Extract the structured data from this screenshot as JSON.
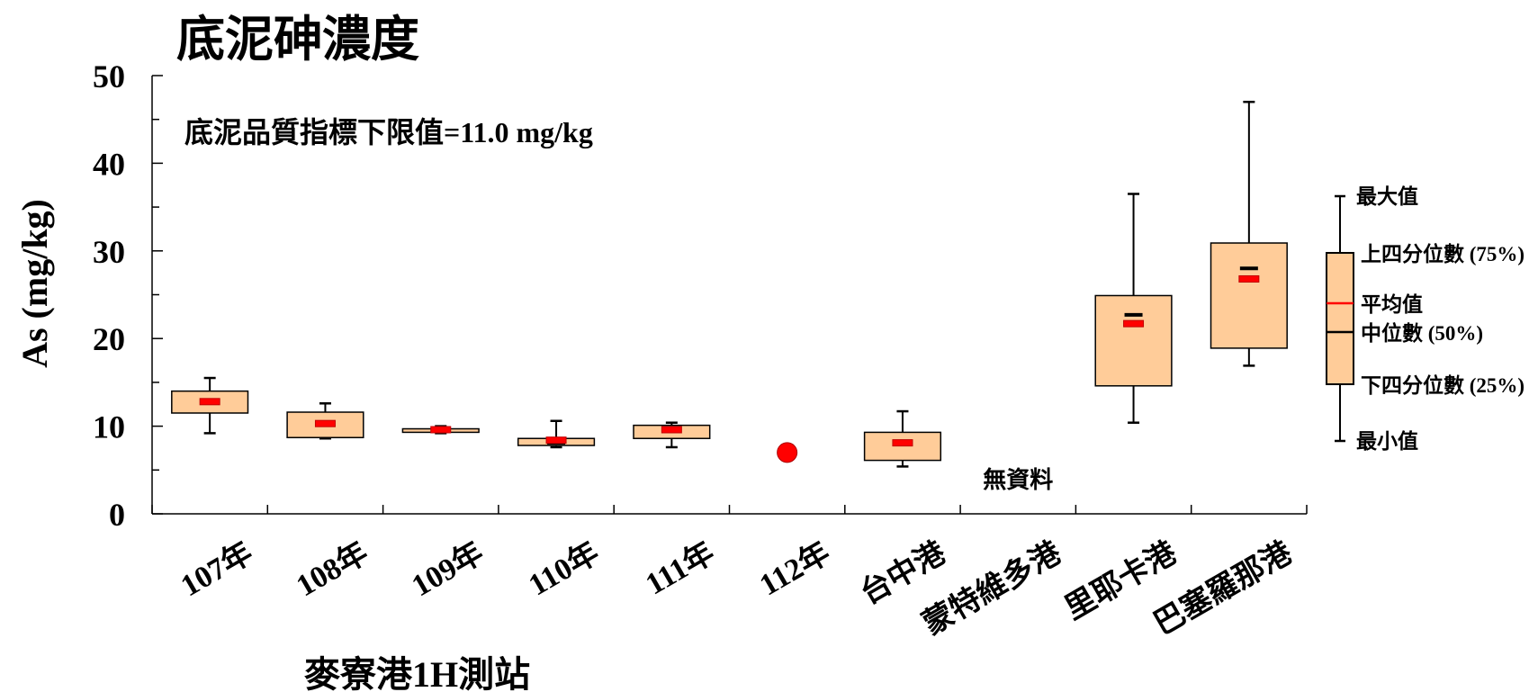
{
  "chart_data": {
    "type": "box",
    "title": "底泥砷濃度",
    "ylabel": "As (mg/kg)",
    "xlabel": "麥寮港1H測站",
    "ylim": [
      0,
      50
    ],
    "yticks": [
      0,
      10,
      20,
      30,
      40,
      50
    ],
    "annotation": "底泥品質指標下限值=11.0 mg/kg",
    "no_data_label": "無資料",
    "categories": [
      "107年",
      "108年",
      "109年",
      "110年",
      "111年",
      "112年",
      "台中港",
      "蒙特維多港",
      "里耶卡港",
      "巴塞羅那港"
    ],
    "boxes": [
      {
        "category": "107年",
        "min": 9.2,
        "q1": 11.5,
        "median": 12.8,
        "mean": 12.8,
        "q3": 14.0,
        "max": 15.5
      },
      {
        "category": "108年",
        "min": 8.6,
        "q1": 8.7,
        "median": 10.3,
        "mean": 10.3,
        "q3": 11.6,
        "max": 12.6
      },
      {
        "category": "109年",
        "min": 9.2,
        "q1": 9.3,
        "median": 9.6,
        "mean": 9.6,
        "q3": 9.7,
        "max": 10.0
      },
      {
        "category": "110年",
        "min": 7.6,
        "q1": 7.8,
        "median": 8.1,
        "mean": 8.4,
        "q3": 8.6,
        "max": 10.6
      },
      {
        "category": "111年",
        "min": 7.6,
        "q1": 8.6,
        "median": 9.5,
        "mean": 9.6,
        "q3": 10.1,
        "max": 10.4
      },
      {
        "category": "112年",
        "point": 7.0
      },
      {
        "category": "台中港",
        "min": 5.4,
        "q1": 6.1,
        "median": 8.1,
        "mean": 8.1,
        "q3": 9.3,
        "max": 11.7
      },
      {
        "category": "蒙特維多港",
        "no_data": true
      },
      {
        "category": "里耶卡港",
        "min": 10.4,
        "q1": 14.6,
        "median": 22.7,
        "mean": 21.7,
        "q3": 24.9,
        "max": 36.5
      },
      {
        "category": "巴塞羅那港",
        "min": 16.9,
        "q1": 18.9,
        "median": 28.0,
        "mean": 26.8,
        "q3": 30.9,
        "max": 47.0
      }
    ],
    "legend": {
      "max": "最大值",
      "q3": "上四分位數 (75%)",
      "mean": "平均值",
      "median": "中位數 (50%)",
      "q1": "下四分位數 (25%)",
      "min": "最小值"
    },
    "colors": {
      "box_fill": "#FFCC99",
      "mean_line": "#FF0000",
      "median_line": "#000000",
      "point": "#FF0000"
    }
  }
}
